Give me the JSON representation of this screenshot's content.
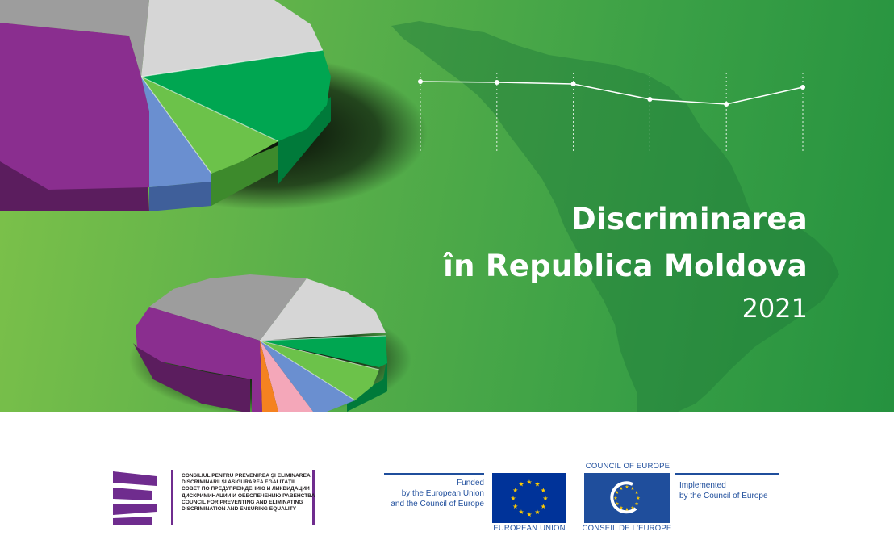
{
  "cover": {
    "title_line1": "Discriminarea",
    "title_line2": "în Republica Moldova",
    "year": "2021"
  },
  "council": {
    "line_ro1": "CONSILIUL PENTRU PREVENIREA ȘI ELIMINAREA",
    "line_ro2": "DISCRIMINĂRII ȘI ASIGURAREA EGALITĂȚII",
    "line_ru1": "СОВЕТ ПО ПРЕДУПРЕЖДЕНИЮ И ЛИКВИДАЦИИ",
    "line_ru2": "ДИСКРИМИНАЦИИ И ОБЕСПЕЧЕНИЮ РАВЕНСТВА",
    "line_en1": "COUNCIL FOR PREVENTING AND ELIMINATING",
    "line_en2": "DISCRIMINATION AND ENSURING EQUALITY",
    "brand_color": "#6f2c8e"
  },
  "funding": {
    "line1": "Funded",
    "line2": "by the European Union",
    "line3": "and the Council of Europe",
    "eu_label": "EUROPEAN UNION",
    "coe_top_label": "COUNCIL OF EUROPE",
    "coe_bottom_label": "CONSEIL DE L'EUROPE",
    "implemented1": "Implemented",
    "implemented2": "by the Council of Europe",
    "text_color": "#1f4e9c",
    "flag_star_color": "#ffcc00"
  },
  "colors": {
    "background_green": "#3aa046",
    "pie_purple": "#8a2e8f",
    "pie_green": "#00a651",
    "pie_light_green": "#6cc24a",
    "pie_grey": "#9d9d9d",
    "pie_light_grey": "#d6d6d6",
    "pie_blue": "#6a8fd0",
    "pie_orange": "#f58220",
    "pie_pink": "#f4a7b9"
  },
  "decor_line": {
    "type": "line",
    "values": [
      0.94,
      0.93,
      0.91,
      0.72,
      0.66,
      0.87
    ]
  }
}
